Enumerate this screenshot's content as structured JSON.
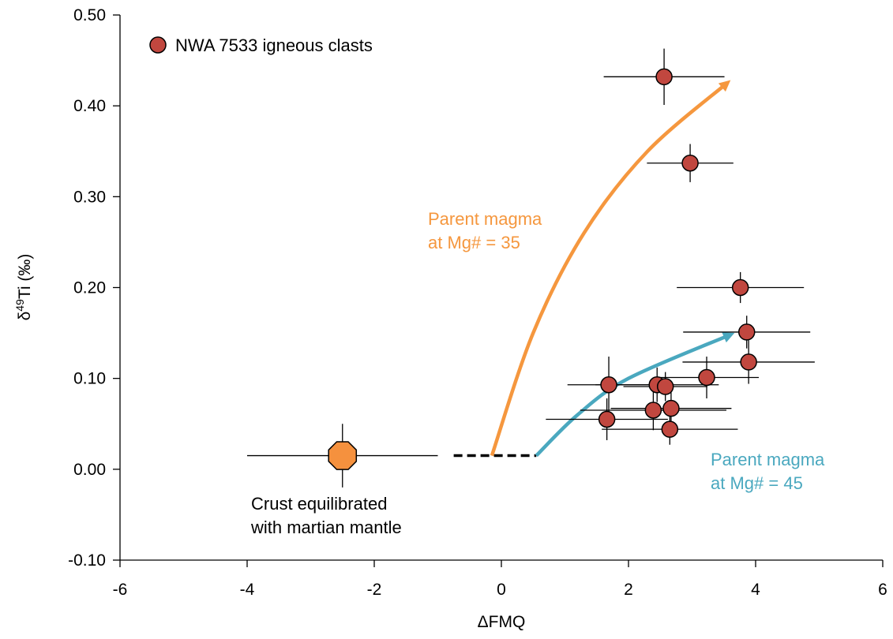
{
  "chart_data": {
    "type": "scatter",
    "xlabel": "ΔFMQ",
    "ylabel_parts": [
      "δ",
      "49",
      "Ti (‰)"
    ],
    "xlim": [
      -6,
      6
    ],
    "ylim": [
      -0.1,
      0.5
    ],
    "xticks": [
      -6,
      -4,
      -2,
      0,
      2,
      4,
      6
    ],
    "yticks": [
      {
        "value": -0.1,
        "label": "-0.10"
      },
      {
        "value": 0,
        "label": "0.00"
      },
      {
        "value": 0.1,
        "label": "0.10"
      },
      {
        "value": 0.2,
        "label": "0.20"
      },
      {
        "value": 0.3,
        "label": "0.30"
      },
      {
        "value": 0.4,
        "label": "0.40"
      },
      {
        "value": 0.5,
        "label": "0.50"
      }
    ],
    "legend": "top-left",
    "series": [
      {
        "name": "NWA 7533 igneous clasts",
        "color": "#c1473f",
        "x": [
          2.56,
          2.97,
          3.76,
          3.86,
          3.89,
          3.23,
          1.69,
          2.45,
          2.58,
          2.39,
          2.67,
          1.66,
          2.65
        ],
        "values": [
          0.432,
          0.337,
          0.2,
          0.151,
          0.118,
          0.101,
          0.093,
          0.093,
          0.091,
          0.065,
          0.067,
          0.055,
          0.044
        ],
        "xerr": [
          0.95,
          0.68,
          1.0,
          1.0,
          1.04,
          0.82,
          0.65,
          0.97,
          0.66,
          1.15,
          0.95,
          0.96,
          1.07
        ],
        "yerr": [
          0.031,
          0.021,
          0.017,
          0.018,
          0.024,
          0.023,
          0.031,
          0.019,
          0.016,
          0.022,
          0.02,
          0.023,
          0.017
        ]
      }
    ],
    "crust": {
      "label": [
        "Crust equilibrated",
        "with martian mantle"
      ],
      "color": "#f5913e",
      "x": [
        -2.5
      ],
      "values": [
        0.015
      ],
      "xerr": [
        1.5
      ],
      "yerr": [
        0.035
      ]
    },
    "reference_line": {
      "x": [
        -0.75,
        0.55
      ],
      "values": [
        0.015,
        0.015
      ]
    },
    "curves": [
      {
        "label": [
          "Parent magma",
          "at Mg# = 35"
        ],
        "color": "#f5973e",
        "x": [
          -0.15,
          0.5,
          1.3,
          2.3,
          3.55
        ],
        "values": [
          0.015,
          0.15,
          0.26,
          0.35,
          0.425
        ]
      },
      {
        "label": [
          "Parent magma",
          "at Mg# = 45"
        ],
        "color": "#4aa8bf",
        "x": [
          0.55,
          1.2,
          2.0,
          3.6
        ],
        "values": [
          0.015,
          0.06,
          0.1,
          0.148
        ]
      }
    ]
  }
}
